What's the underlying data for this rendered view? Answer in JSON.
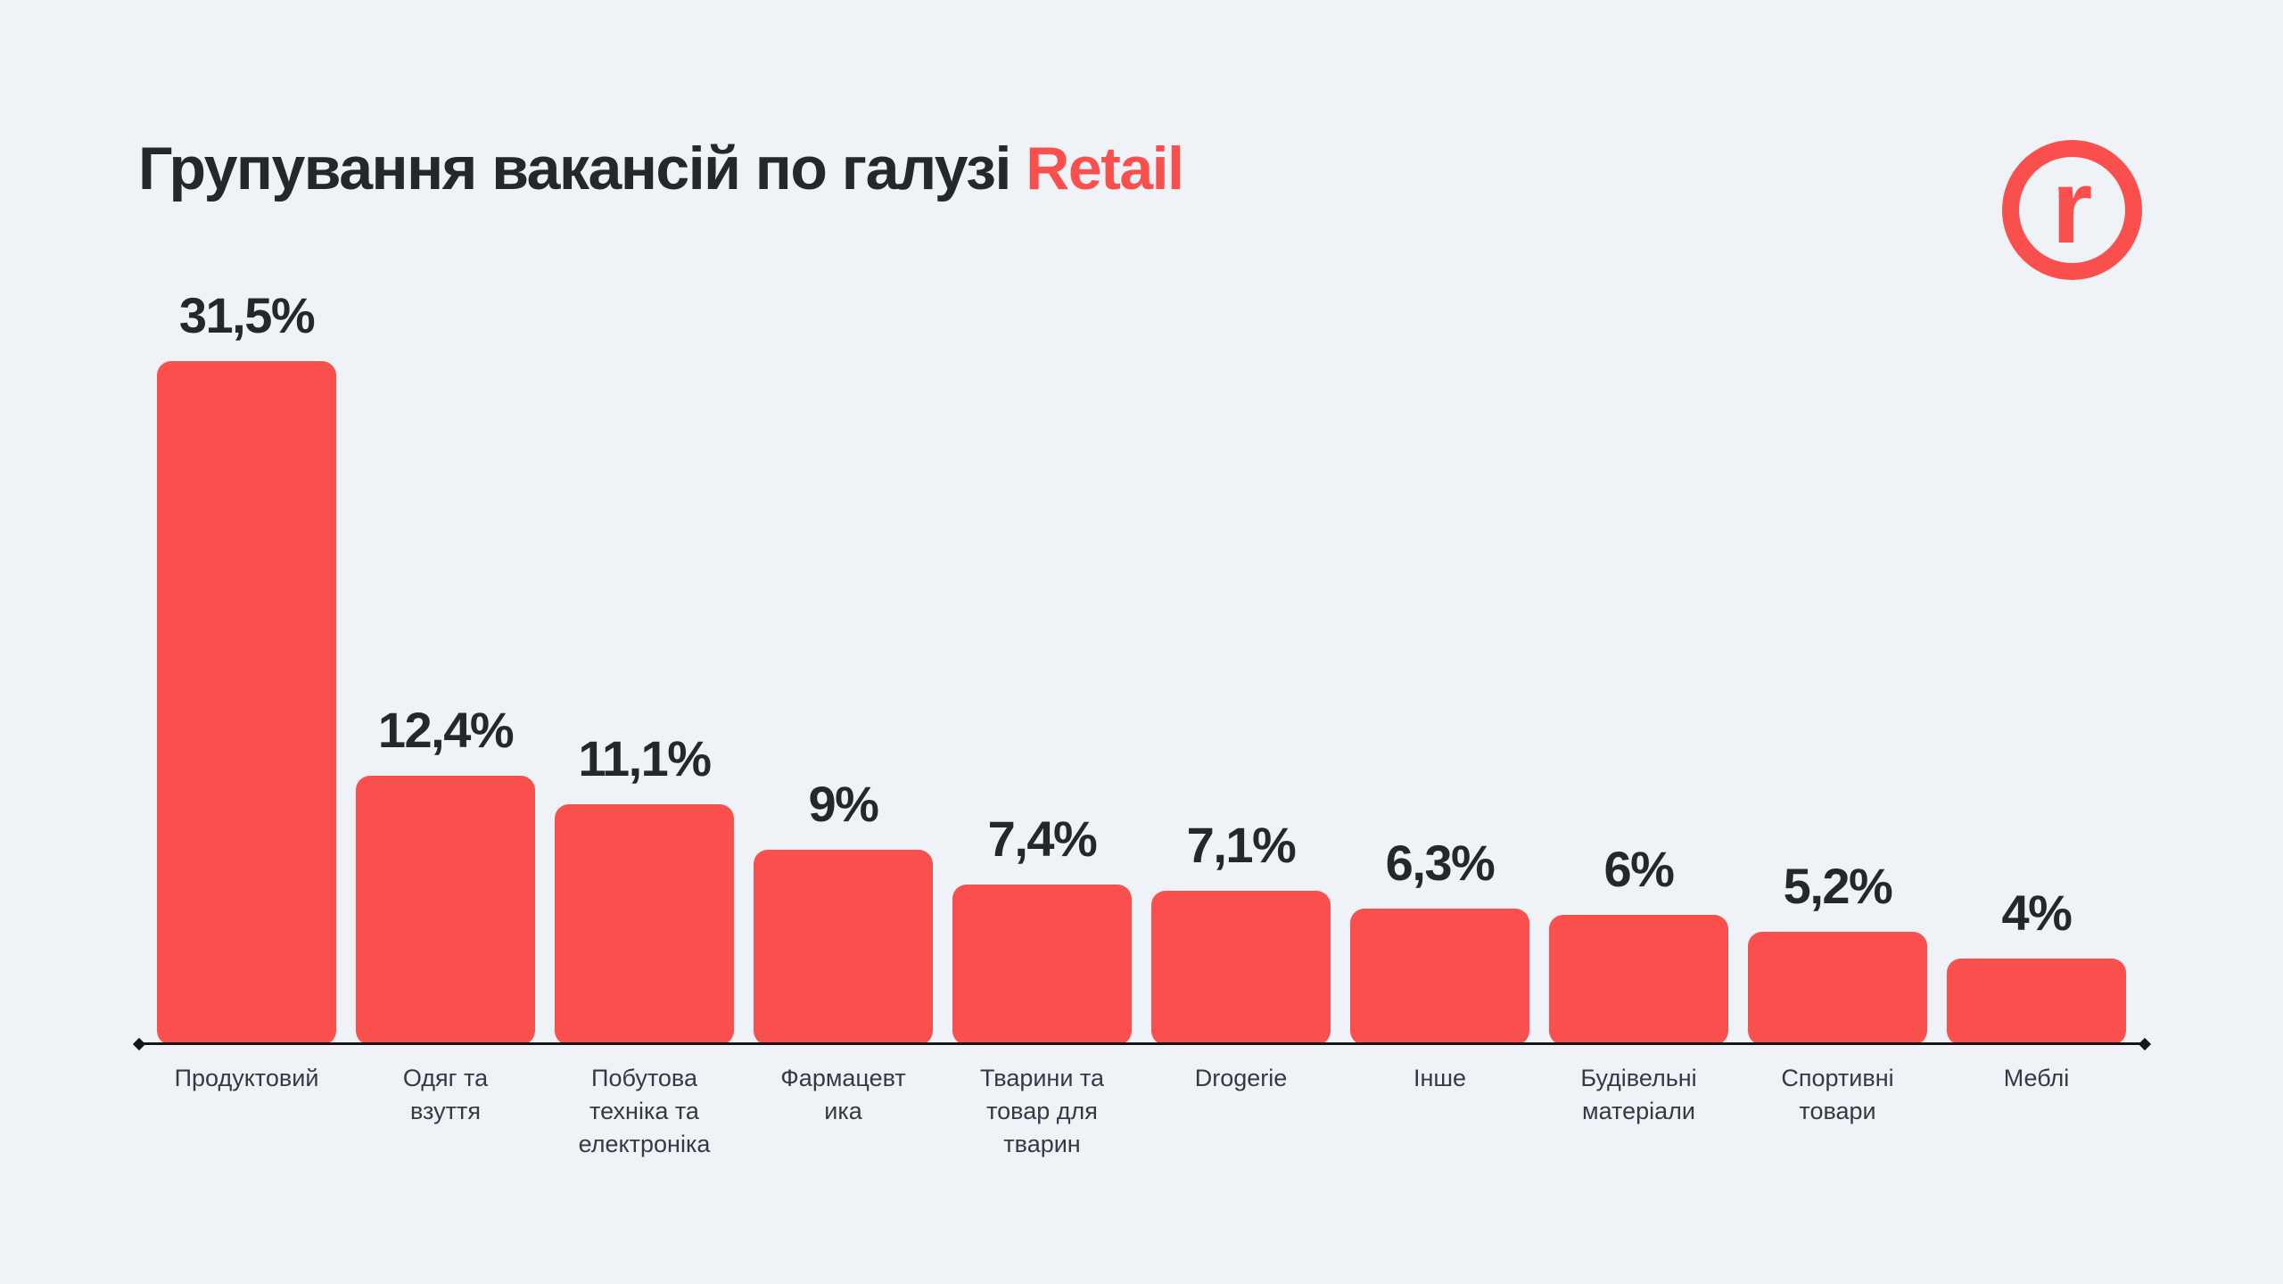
{
  "page": {
    "background_color": "#eff2f6"
  },
  "header": {
    "title_prefix": "Групування вакансій по галузі ",
    "title_highlight": "Retail",
    "title_color": "#24272c",
    "highlight_color": "#f9504e"
  },
  "logo": {
    "letter": "r",
    "color": "#f9504e"
  },
  "chart_data": {
    "type": "bar",
    "title": "Групування вакансій по галузі Retail",
    "categories": [
      "Продуктовий",
      "Одяг та взуття",
      "Побутова техніка та електроніка",
      "Фармацевтика",
      "Тварини та товар для тварин",
      "Drogerie",
      "Інше",
      "Будівельні матеріали",
      "Спортивні товари",
      "Меблі"
    ],
    "category_display_lines": [
      "Продуктовий",
      "Одяг та\nвзуття",
      "Побутова\nтехніка та\nелектроніка",
      "Фармацевт\nика",
      "Тварини та\nтовар для\nтварин",
      "Drogerie",
      "Інше",
      "Будівельні\nматеріали",
      "Спортивні\nтовари",
      "Меблі"
    ],
    "values": [
      31.5,
      12.4,
      11.1,
      9,
      7.4,
      7.1,
      6.3,
      6,
      5.2,
      4
    ],
    "value_labels": [
      "31,5%",
      "12,4%",
      "11,1%",
      "9%",
      "7,4%",
      "7,1%",
      "6,3%",
      "6%",
      "5,2%",
      "4%"
    ],
    "unit": "%",
    "ylim": [
      0,
      31.5
    ],
    "bar_color": "#f9504e",
    "value_label_color": "#24272c",
    "category_label_color": "#343a41",
    "axis_color": "#15171a",
    "grid": false,
    "legend": false,
    "xlabel": "",
    "ylabel": ""
  }
}
